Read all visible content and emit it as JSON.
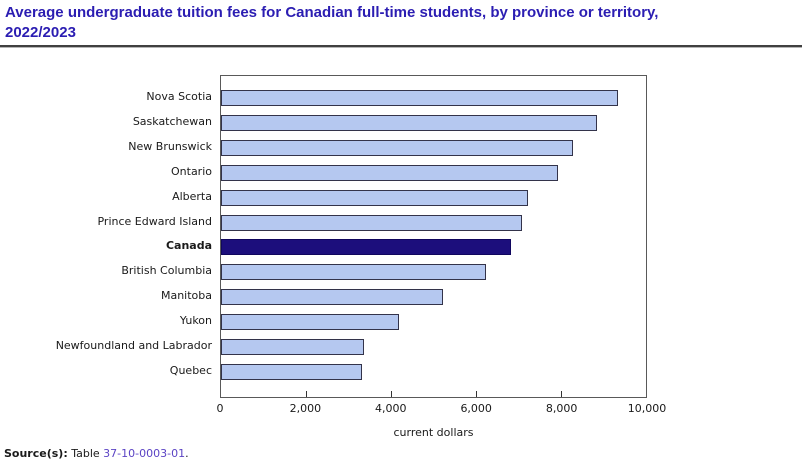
{
  "page": {
    "title": "Average undergraduate tuition fees for Canadian full-time students, by province or territory, 2022/2023",
    "source": {
      "prefix": "Source(s):",
      "text": "Table",
      "link": "37-10-0003-01",
      "suffix": "."
    }
  },
  "colors": {
    "title": "#2b1db2",
    "link": "#5b43c4",
    "bar_fill": "#b5c8f0",
    "bar_border": "#33334a",
    "highlight_fill": "#1c0e7c",
    "highlight_border": "#10065e",
    "plot_border": "#595959"
  },
  "chart_data": {
    "type": "bar",
    "orientation": "horizontal",
    "title": "Average undergraduate tuition fees for Canadian full-time students, by province or territory, 2022/2023",
    "categories": [
      "Nova Scotia",
      "Saskatchewan",
      "New Brunswick",
      "Ontario",
      "Alberta",
      "Prince Edward Island",
      "Canada",
      "British Columbia",
      "Manitoba",
      "Yukon",
      "Newfoundland and Labrador",
      "Quebec"
    ],
    "values": [
      9340,
      8840,
      8280,
      7930,
      7220,
      7090,
      6830,
      6240,
      5230,
      4180,
      3360,
      3320
    ],
    "highlight_category": "Canada",
    "xlabel": "current dollars",
    "ylabel": "",
    "xlim": [
      0,
      10000
    ],
    "xticks": [
      0,
      2000,
      4000,
      6000,
      8000,
      10000
    ],
    "xtick_labels": [
      "0",
      "2,000",
      "4,000",
      "6,000",
      "8,000",
      "10,000"
    ],
    "grid": false,
    "legend": false
  }
}
